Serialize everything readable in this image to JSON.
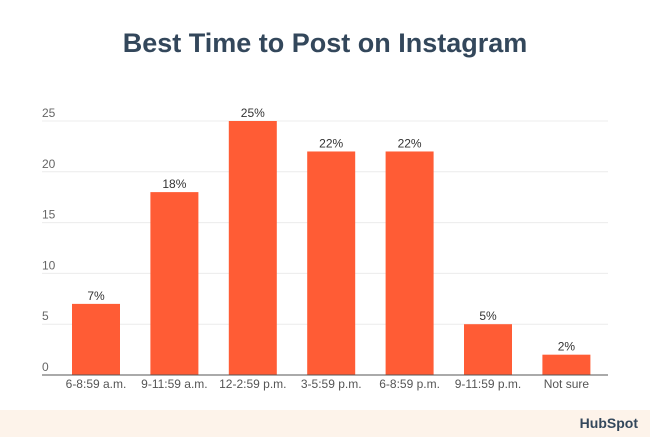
{
  "chart_data": {
    "type": "bar",
    "title": "Best Time to Post on Instagram",
    "categories": [
      "6-8:59 a.m.",
      "9-11:59 a.m.",
      "12-2:59 p.m.",
      "3-5:59 p.m.",
      "6-8:59 p.m.",
      "9-11:59 p.m.",
      "Not sure"
    ],
    "values": [
      7,
      18,
      25,
      22,
      22,
      5,
      2
    ],
    "data_labels": [
      "7%",
      "18%",
      "25%",
      "22%",
      "22%",
      "5%",
      "2%"
    ],
    "yticks": [
      0,
      5,
      10,
      15,
      20,
      25
    ],
    "ylim": [
      0,
      25
    ],
    "grid": true,
    "bar_color": "#ff5c35"
  },
  "footer": {
    "logo": "HubSpot"
  }
}
